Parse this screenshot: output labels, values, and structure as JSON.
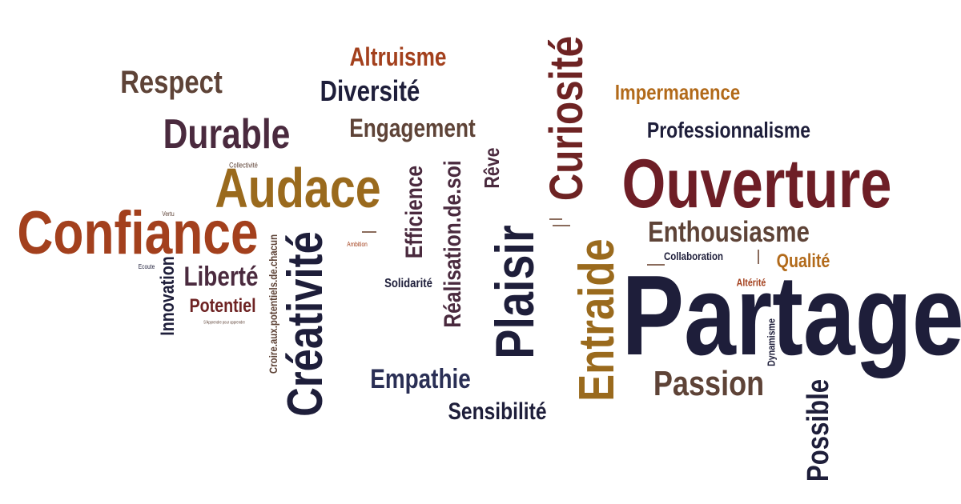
{
  "words": {
    "partage": "Partage",
    "ouverture": "Ouverture",
    "confiance": "Confiance",
    "audace": "Audace",
    "creativite": "Créativité",
    "plaisir": "Plaisir",
    "entraide": "Entraide",
    "curiosite": "Curiosité",
    "durable": "Durable",
    "respect": "Respect",
    "diversite": "Diversité",
    "altruisme": "Altruisme",
    "engagement": "Engagement",
    "impermanence": "Impermanence",
    "professionnalisme": "Professionnalisme",
    "enthousiasme": "Enthousiasme",
    "passion": "Passion",
    "empathie": "Empathie",
    "sensibilite": "Sensibilité",
    "possible": "Possible",
    "realisation": "Réalisation.de.soi",
    "efficience": "Efficience",
    "reve": "Rêve",
    "liberte": "Liberté",
    "potentiel": "Potentiel",
    "innovation": "Innovation",
    "croire": "Croire.aux.potentiels.de.chacun",
    "solidarite": "Solidarité",
    "qualite": "Qualité",
    "collaboration": "Collaboration",
    "alterite": "Altérité",
    "dynamisme": "Dynamisme",
    "collectivite": "Collectivité",
    "vertu": "Vertu",
    "ecoute": "Ecoute",
    "ambition": "Ambition",
    "apprendre": "S'Apprendre pour apprendre"
  },
  "colors": {
    "navy": "#1e1e3a",
    "maroon": "#6e2323",
    "brown": "#5e4337",
    "gold": "#9a6a1d",
    "rust": "#a3401d",
    "plum": "#4a2a3e",
    "bordeaux": "#6e1e26",
    "amber": "#b26a1a"
  }
}
